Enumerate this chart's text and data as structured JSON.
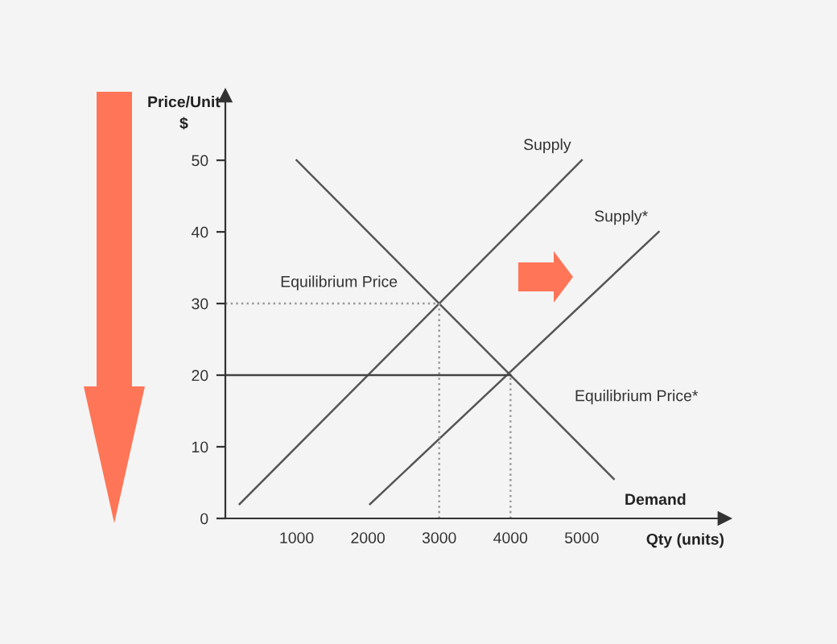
{
  "chart_data": {
    "type": "line",
    "xlabel": "Qty (units)",
    "ylabel": "Price/Unit\n$",
    "xlim": [
      0,
      7000
    ],
    "ylim": [
      0,
      59
    ],
    "xticks": [
      1000,
      2000,
      3000,
      4000,
      5000
    ],
    "yticks": [
      0,
      10,
      20,
      30,
      40,
      50
    ],
    "grid": false,
    "marker": "none",
    "series": [
      {
        "name": "Supply",
        "color": "#555555",
        "x": [
          200,
          5000
        ],
        "values": [
          2,
          50
        ]
      },
      {
        "name": "Supply*",
        "color": "#555555",
        "x": [
          2030,
          6080
        ],
        "values": [
          2,
          40
        ]
      },
      {
        "name": "Demand",
        "color": "#555555",
        "x": [
          1000,
          5450
        ],
        "values": [
          50,
          5.5
        ]
      },
      {
        "color": "#999999",
        "line_style": "dotted",
        "x": [
          0,
          3000
        ],
        "values": [
          30,
          30
        ]
      },
      {
        "color": "#999999",
        "line_style": "dotted",
        "x": [
          3000,
          3000
        ],
        "values": [
          0,
          30
        ]
      },
      {
        "color": "#444444",
        "line_style": "solid",
        "x": [
          0,
          4000
        ],
        "values": [
          20,
          20
        ]
      },
      {
        "color": "#999999",
        "line_style": "dotted",
        "x": [
          4000,
          4000
        ],
        "values": [
          0,
          20
        ]
      }
    ],
    "annotations": [
      "Equilibrium Price",
      "Equilibrium Price*"
    ]
  }
}
